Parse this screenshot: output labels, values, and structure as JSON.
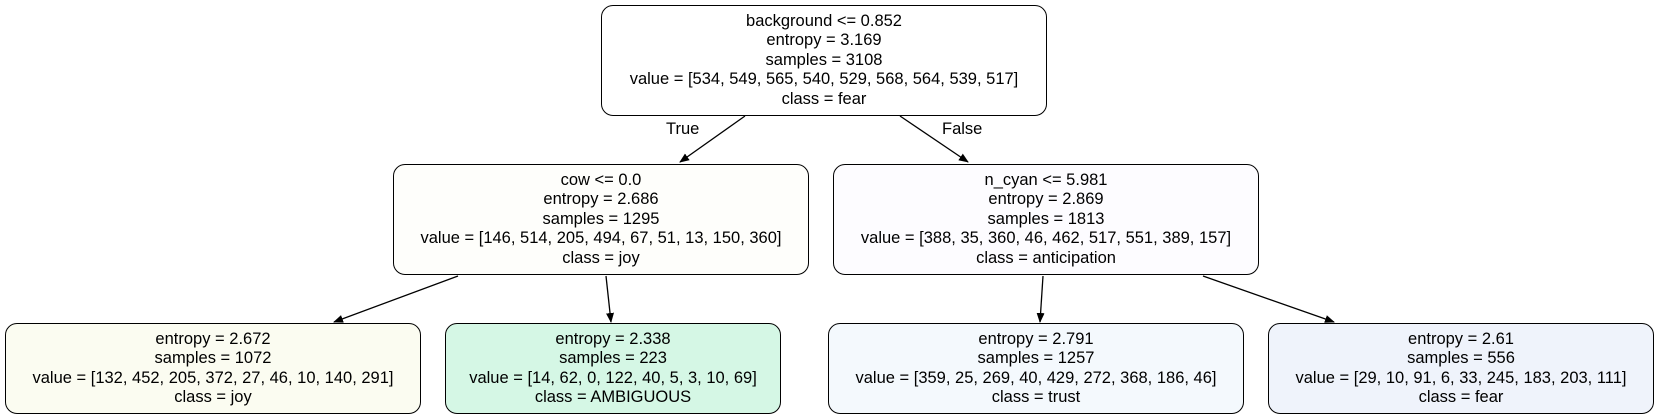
{
  "nodes": [
    {
      "id": "root",
      "lines": [
        "background <= 0.852",
        "entropy = 3.169",
        "samples = 3108",
        "value = [534, 549, 565, 540, 529, 568, 564, 539, 517]",
        "class = fear"
      ],
      "fill": "#ffffff"
    },
    {
      "id": "left",
      "lines": [
        "cow <= 0.0",
        "entropy = 2.686",
        "samples = 1295",
        "value = [146, 514, 205, 494, 67, 51, 13, 150, 360]",
        "class = joy"
      ],
      "fill": "#fefefb"
    },
    {
      "id": "right",
      "lines": [
        "n_cyan <= 5.981",
        "entropy = 2.869",
        "samples = 1813",
        "value = [388, 35, 360, 46, 462, 517, 551, 389, 157]",
        "class = anticipation"
      ],
      "fill": "#fdfcff"
    },
    {
      "id": "ll",
      "lines": [
        "entropy = 2.672",
        "samples = 1072",
        "value = [132, 452, 205, 372, 27, 46, 10, 140, 291]",
        "class = joy"
      ],
      "fill": "#fbfcf1"
    },
    {
      "id": "lr",
      "lines": [
        "entropy = 2.338",
        "samples = 223",
        "value = [14, 62, 0, 122, 40, 5, 3, 10, 69]",
        "class = AMBIGUOUS"
      ],
      "fill": "#d5f7e5"
    },
    {
      "id": "rl",
      "lines": [
        "entropy = 2.791",
        "samples = 1257",
        "value = [359, 25, 269, 40, 429, 272, 368, 186, 46]",
        "class = trust"
      ],
      "fill": "#f4f9fd"
    },
    {
      "id": "rr",
      "lines": [
        "entropy = 2.61",
        "samples = 556",
        "value = [29, 10, 91, 6, 33, 245, 183, 203, 111]",
        "class = fear"
      ],
      "fill": "#eff3fb"
    }
  ],
  "edge_labels": {
    "true": "True",
    "false": "False"
  }
}
